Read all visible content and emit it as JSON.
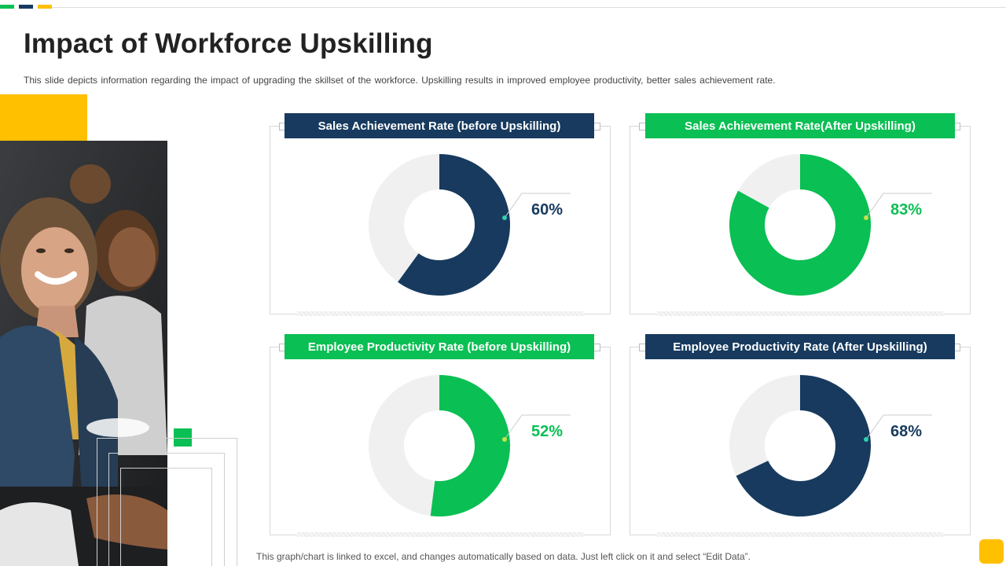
{
  "page": {
    "title": "Impact of Workforce Upskilling",
    "subtitle": "This slide depicts information  regarding the impact of upgrading the skillset of the workforce.  Upskilling results in improved  employee productivity, better sales achievement  rate.",
    "footnote": "This graph/chart is linked to excel,  and changes automatically based on data. Just left click on it and select “Edit Data”."
  },
  "colors": {
    "navy": "#173a5e",
    "green": "#0abf53",
    "yellow": "#ffc000",
    "track": "#f0f0f0"
  },
  "chart_data": [
    {
      "type": "pie",
      "title": "Sales Achievement Rate (before Upskilling)",
      "value": 60,
      "label": "60%",
      "color": "#173a5e",
      "remainder_color": "#f0f0f0"
    },
    {
      "type": "pie",
      "title": "Sales Achievement Rate(After Upskilling)",
      "value": 83,
      "label": "83%",
      "color": "#0abf53",
      "remainder_color": "#f0f0f0"
    },
    {
      "type": "pie",
      "title": "Employee Productivity Rate (before Upskilling)",
      "value": 52,
      "label": "52%",
      "color": "#0abf53",
      "remainder_color": "#f0f0f0"
    },
    {
      "type": "pie",
      "title": "Employee Productivity Rate (After Upskilling)",
      "value": 68,
      "label": "68%",
      "color": "#173a5e",
      "remainder_color": "#f0f0f0"
    }
  ]
}
